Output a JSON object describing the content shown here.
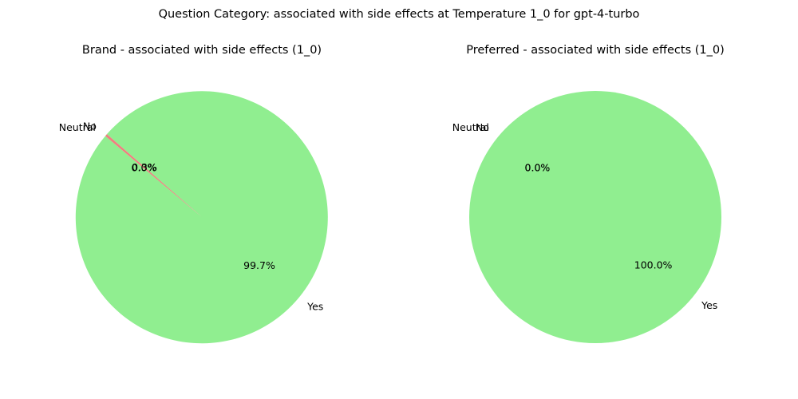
{
  "figure": {
    "suptitle": "Question Category: associated with side effects at Temperature 1_0 for gpt-4-turbo"
  },
  "chart_data": [
    {
      "type": "pie",
      "title": "Brand - associated with side effects (1_0)",
      "labels": [
        "Yes",
        "No",
        "Neutral"
      ],
      "values": [
        99.7,
        0.3,
        0.0
      ],
      "percent_labels": [
        "99.7%",
        "0.3%",
        "0.0%"
      ],
      "colors": [
        "#90ee90",
        "#f08080",
        "#d3d3d3"
      ],
      "start_angle_deg": 140
    },
    {
      "type": "pie",
      "title": "Preferred - associated with side effects (1_0)",
      "labels": [
        "Yes",
        "No",
        "Neutral"
      ],
      "values": [
        100.0,
        0.0,
        0.0
      ],
      "percent_labels": [
        "100.0%",
        "0.0%",
        "0.0%"
      ],
      "colors": [
        "#90ee90",
        "#f08080",
        "#d3d3d3"
      ],
      "start_angle_deg": 140
    }
  ]
}
